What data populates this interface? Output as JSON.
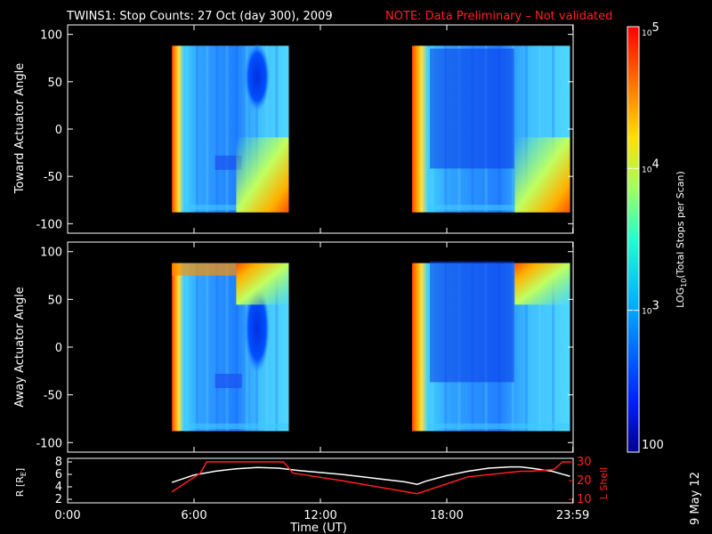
{
  "chart_data": [
    {
      "type": "heatmap",
      "panel": "toward",
      "title": "TWINS1: Stop Counts: 27 Oct (day 300), 2009",
      "note": "NOTE: Data Preliminary – Not validated",
      "ylabel": "Toward Actuator Angle",
      "ylim": [
        -110,
        110
      ],
      "yticks": [
        "100",
        "50",
        "0",
        "-50",
        "-100"
      ],
      "data_blocks": [
        {
          "x_start": 4.95,
          "x_end": 10.5,
          "y_min": -88,
          "y_max": 88
        },
        {
          "x_start": 16.35,
          "x_end": 23.85,
          "y_min": -88,
          "y_max": 88
        }
      ]
    },
    {
      "type": "heatmap",
      "panel": "away",
      "ylabel": "Away Actuator Angle",
      "ylim": [
        -110,
        110
      ],
      "yticks": [
        "100",
        "50",
        "0",
        "-50",
        "-100"
      ],
      "data_blocks": [
        {
          "x_start": 4.95,
          "x_end": 10.5,
          "y_min": -88,
          "y_max": 88
        },
        {
          "x_start": 16.35,
          "x_end": 23.85,
          "y_min": -88,
          "y_max": 88
        }
      ]
    },
    {
      "type": "line",
      "panel": "orbit",
      "ylabel_left": "R [RE]",
      "ylabel_right": "L Shell",
      "ylim_left": [
        2,
        8
      ],
      "ylim_right": [
        10,
        30
      ],
      "yticks_left": [
        "8",
        "6",
        "4",
        "2"
      ],
      "yticks_right": [
        "30",
        "20",
        "10"
      ],
      "series": [
        {
          "name": "R",
          "color": "#ffffff",
          "x": [
            4.95,
            6,
            7,
            8,
            9,
            10,
            11,
            12,
            13,
            14,
            15,
            16,
            16.6,
            17,
            18,
            19,
            20,
            21,
            21.5,
            22,
            23,
            23.85
          ],
          "y": [
            4.7,
            5.9,
            6.5,
            6.9,
            7.1,
            7.0,
            6.6,
            6.3,
            6.0,
            5.6,
            5.2,
            4.8,
            4.4,
            4.9,
            5.8,
            6.5,
            7.0,
            7.2,
            7.2,
            7.0,
            6.5,
            5.7
          ]
        },
        {
          "name": "L Shell",
          "color": "#ff2020",
          "x": [
            4.95,
            6.3,
            6.6,
            10.25,
            10.7,
            13,
            16.6,
            19,
            21.5,
            22,
            23.1,
            23.5,
            23.85
          ],
          "y": [
            14,
            24,
            30,
            30,
            24,
            20,
            13,
            22,
            25,
            25,
            26,
            30,
            30
          ]
        }
      ]
    }
  ],
  "x_axis": {
    "label": "Time (UT)",
    "ticks": [
      {
        "value": 0,
        "label": "0:00"
      },
      {
        "value": 6,
        "label": "6:00"
      },
      {
        "value": 12,
        "label": "12:00"
      },
      {
        "value": 18,
        "label": "18:00"
      },
      {
        "value": 23.983,
        "label": "23:59"
      }
    ],
    "range": [
      0,
      24
    ]
  },
  "colorbar": {
    "label": "LOG10(Total Stops per Scan)",
    "label_main": "LOG",
    "label_sub": "10",
    "label_rest": "(Total Stops per Scan)",
    "ticks": [
      {
        "value": 5,
        "base": "10",
        "exp": "5"
      },
      {
        "value": 4,
        "base": "10",
        "exp": "4"
      },
      {
        "value": 3,
        "base": "10",
        "exp": "3"
      },
      {
        "value": 2,
        "base": "100",
        "exp": ""
      }
    ],
    "range": [
      2,
      5
    ]
  },
  "r_label_main": "R [R",
  "r_label_sub": "E",
  "r_label_end": "]",
  "date_stamp": "9 May 12",
  "colors": {
    "red_note": "#ff2020",
    "axis": "#ffffff",
    "background": "#000000"
  }
}
